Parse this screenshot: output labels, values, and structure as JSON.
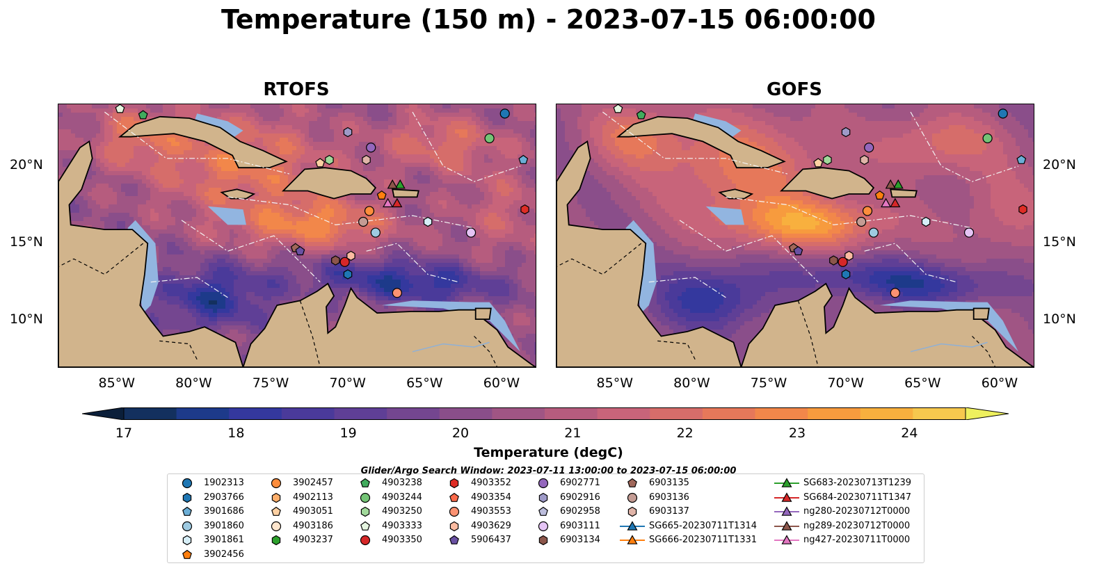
{
  "figure": {
    "suptitle": "Temperature (150 m) - 2023-07-15 06:00:00"
  },
  "panels": [
    {
      "title": "RTOFS"
    },
    {
      "title": "GOFS"
    }
  ],
  "axes": {
    "x_ticks": [
      "85°W",
      "80°W",
      "75°W",
      "70°W",
      "65°W",
      "60°W"
    ],
    "y_ticks": [
      "20°N",
      "15°N",
      "10°N"
    ],
    "lon_range": [
      -89,
      -58
    ],
    "lat_range": [
      7,
      24
    ]
  },
  "colorbar": {
    "label": "Temperature (degC)",
    "ticks": [
      "17",
      "18",
      "19",
      "20",
      "21",
      "22",
      "23",
      "24"
    ],
    "range": [
      17,
      24.5
    ],
    "step": 0.5,
    "extend": "both",
    "colors": [
      "#0b1f3a",
      "#13305e",
      "#1d3a8a",
      "#34389e",
      "#4a3a9a",
      "#5f3f96",
      "#744690",
      "#8a4e8a",
      "#a05584",
      "#b65c7e",
      "#c8647a",
      "#d66d6a",
      "#e6785a",
      "#f2874a",
      "#f79b3e",
      "#f8b03e",
      "#f6c84e",
      "#eef05e"
    ]
  },
  "search_window": "Glider/Argo Search Window: 2023-07-11 13:00:00 to 2023-07-15 06:00:00",
  "legend": {
    "columns": [
      [
        {
          "label": "1902313",
          "marker": "circle",
          "color": "#1f77b4"
        },
        {
          "label": "2903766",
          "marker": "hexagon",
          "color": "#1f77b4"
        },
        {
          "label": "3901686",
          "marker": "pentagon",
          "color": "#6baed6"
        },
        {
          "label": "3901860",
          "marker": "circle",
          "color": "#9ecae1"
        },
        {
          "label": "3901861",
          "marker": "hexagon",
          "color": "#d6eef8"
        },
        {
          "label": "3902456",
          "marker": "pentagon",
          "color": "#ff7f0e"
        }
      ],
      [
        {
          "label": "3902457",
          "marker": "circle",
          "color": "#fd8d3c"
        },
        {
          "label": "4902113",
          "marker": "hexagon",
          "color": "#fdae6b"
        },
        {
          "label": "4903051",
          "marker": "pentagon",
          "color": "#fdd0a2"
        },
        {
          "label": "4903186",
          "marker": "circle",
          "color": "#fee6ce"
        },
        {
          "label": "4903237",
          "marker": "hexagon",
          "color": "#2ca02c"
        }
      ],
      [
        {
          "label": "4903238",
          "marker": "pentagon",
          "color": "#41ab5d"
        },
        {
          "label": "4903244",
          "marker": "circle",
          "color": "#74c476"
        },
        {
          "label": "4903250",
          "marker": "hexagon",
          "color": "#a1d99b"
        },
        {
          "label": "4903333",
          "marker": "pentagon",
          "color": "#e5f5e0"
        },
        {
          "label": "4903350",
          "marker": "circle",
          "color": "#d62728"
        }
      ],
      [
        {
          "label": "4903352",
          "marker": "hexagon",
          "color": "#de2d26"
        },
        {
          "label": "4903354",
          "marker": "pentagon",
          "color": "#fb6a4a"
        },
        {
          "label": "4903553",
          "marker": "circle",
          "color": "#fc9272"
        },
        {
          "label": "4903629",
          "marker": "hexagon",
          "color": "#fcbba1"
        },
        {
          "label": "5906437",
          "marker": "pentagon",
          "color": "#6a51a3"
        }
      ],
      [
        {
          "label": "6902771",
          "marker": "circle",
          "color": "#9467bd"
        },
        {
          "label": "6902916",
          "marker": "hexagon",
          "color": "#9e9ac8"
        },
        {
          "label": "6902958",
          "marker": "pentagon",
          "color": "#bcbddc"
        },
        {
          "label": "6903111",
          "marker": "circle",
          "color": "#e5c4f5"
        },
        {
          "label": "6903134",
          "marker": "hexagon",
          "color": "#8c564b"
        }
      ],
      [
        {
          "label": "6903135",
          "marker": "pentagon",
          "color": "#a0675a"
        },
        {
          "label": "6903136",
          "marker": "circle",
          "color": "#c49c94"
        },
        {
          "label": "6903137",
          "marker": "hexagon",
          "color": "#e0b4a8"
        },
        {
          "label": "SG665-20230711T1314",
          "marker": "triangle-line",
          "color": "#1f77b4"
        },
        {
          "label": "SG666-20230711T1331",
          "marker": "triangle-line",
          "color": "#ff7f0e"
        }
      ],
      [
        {
          "label": "SG683-20230713T1239",
          "marker": "triangle-line",
          "color": "#2ca02c"
        },
        {
          "label": "SG684-20230711T1347",
          "marker": "triangle-line",
          "color": "#d62728"
        },
        {
          "label": "ng280-20230712T0000",
          "marker": "triangle-line",
          "color": "#9467bd"
        },
        {
          "label": "ng289-20230712T0000",
          "marker": "triangle-line",
          "color": "#8c564b"
        },
        {
          "label": "ng427-20230711T0000",
          "marker": "triangle-line",
          "color": "#e377c2"
        }
      ]
    ]
  },
  "observations": [
    {
      "id": "1902313",
      "lon": -60.0,
      "lat": 23.4
    },
    {
      "id": "3901686",
      "lon": -58.8,
      "lat": 20.4
    },
    {
      "id": "4903244",
      "lon": -61.0,
      "lat": 21.8
    },
    {
      "id": "6902771",
      "lon": -68.7,
      "lat": 21.2
    },
    {
      "id": "6902916",
      "lon": -70.2,
      "lat": 22.2
    },
    {
      "id": "4903238",
      "lon": -83.5,
      "lat": 23.3
    },
    {
      "id": "4903333",
      "lon": -85.0,
      "lat": 23.7
    },
    {
      "id": "4903051",
      "lon": -72.0,
      "lat": 20.2
    },
    {
      "id": "4903250",
      "lon": -71.4,
      "lat": 20.4
    },
    {
      "id": "6903137",
      "lon": -69.0,
      "lat": 20.4
    },
    {
      "id": "3902456",
      "lon": -68.0,
      "lat": 18.1
    },
    {
      "id": "3902457",
      "lon": -68.8,
      "lat": 17.1
    },
    {
      "id": "6903136",
      "lon": -69.2,
      "lat": 16.4
    },
    {
      "id": "3901860",
      "lon": -68.4,
      "lat": 15.7
    },
    {
      "id": "3901861",
      "lon": -65.0,
      "lat": 16.4
    },
    {
      "id": "6903111",
      "lon": -62.2,
      "lat": 15.7
    },
    {
      "id": "4903352",
      "lon": -58.7,
      "lat": 17.2
    },
    {
      "id": "6903135",
      "lon": -73.6,
      "lat": 14.7
    },
    {
      "id": "5906437",
      "lon": -73.3,
      "lat": 14.5
    },
    {
      "id": "6903134",
      "lon": -71.0,
      "lat": 13.9
    },
    {
      "id": "4903629",
      "lon": -70.0,
      "lat": 14.2
    },
    {
      "id": "4903350",
      "lon": -70.4,
      "lat": 13.8
    },
    {
      "id": "2903766",
      "lon": -70.2,
      "lat": 13.0
    },
    {
      "id": "4903553",
      "lon": -67.0,
      "lat": 11.8
    },
    {
      "id": "SG683-20230713T1239",
      "lon": -66.8,
      "lat": 18.8
    },
    {
      "id": "ng289-20230712T0000",
      "lon": -67.3,
      "lat": 18.8
    },
    {
      "id": "SG684-20230711T1347",
      "lon": -67.0,
      "lat": 17.6
    },
    {
      "id": "ng427-20230711T0000",
      "lon": -67.6,
      "lat": 17.6
    }
  ]
}
